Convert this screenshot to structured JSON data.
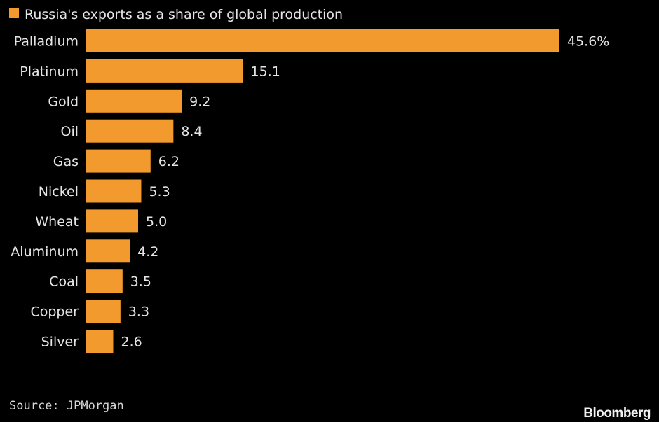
{
  "chart_data": {
    "type": "bar",
    "orientation": "horizontal",
    "legend": {
      "label": "Russia's exports as a share of global production",
      "placement": "top-left"
    },
    "categories": [
      "Palladium",
      "Platinum",
      "Gold",
      "Oil",
      "Gas",
      "Nickel",
      "Wheat",
      "Aluminum",
      "Coal",
      "Copper",
      "Silver"
    ],
    "values": [
      45.6,
      15.1,
      9.2,
      8.4,
      6.2,
      5.3,
      5.0,
      4.2,
      3.5,
      3.3,
      2.6
    ],
    "value_labels": [
      "45.6%",
      "15.1",
      "9.2",
      "8.4",
      "6.2",
      "5.3",
      "5.0",
      "4.2",
      "3.5",
      "3.3",
      "2.6"
    ],
    "unit": "%",
    "xlim": [
      0,
      45.6
    ],
    "grid": false,
    "colors": {
      "bar": "#f29a2e",
      "background": "#000000",
      "text": "#e6e6e6"
    }
  },
  "footer": {
    "source": "Source: JPMorgan",
    "brand": "Bloomberg"
  }
}
